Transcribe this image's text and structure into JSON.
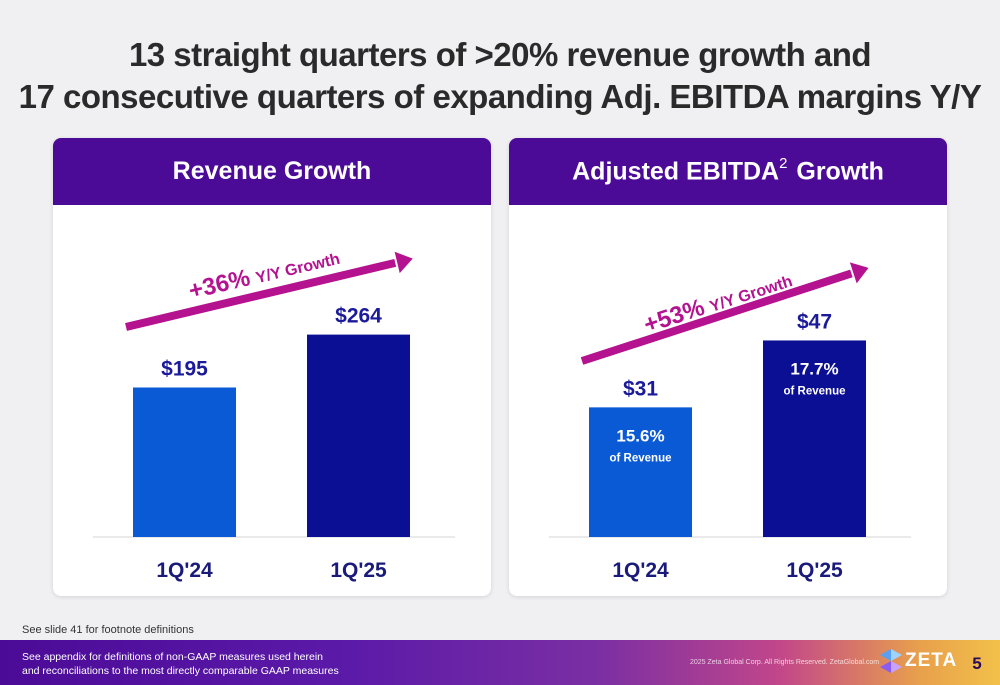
{
  "title_line1": "13 straight quarters of >20% revenue growth and",
  "title_line2": "17 consecutive quarters of expanding Adj. EBITDA margins Y/Y",
  "colors": {
    "header": "#4b0b97",
    "bar_prior": "#0a5ad6",
    "bar_current": "#0b0f94",
    "growth_arrow": "#b5128f",
    "value_label": "#1a1a9a"
  },
  "chart_data": [
    {
      "type": "bar",
      "title": "Revenue Growth",
      "categories": [
        "1Q'24",
        "1Q'25"
      ],
      "values": [
        195,
        264
      ],
      "value_labels": [
        "$195",
        "$264"
      ],
      "growth_pct": "+36%",
      "growth_text": "Y/Y Growth",
      "ylim": [
        0,
        300
      ]
    },
    {
      "type": "bar",
      "title_main": "Adjusted EBITDA",
      "title_sup": "2",
      "title_end": "Growth",
      "categories": [
        "1Q'24",
        "1Q'25"
      ],
      "values": [
        31,
        47
      ],
      "value_labels": [
        "$31",
        "$47"
      ],
      "margin_pct": [
        "15.6%",
        "17.7%"
      ],
      "margin_text": [
        "of Revenue",
        "of Revenue"
      ],
      "growth_pct": "+53%",
      "growth_text": "Y/Y Growth",
      "ylim": [
        0,
        55
      ]
    }
  ],
  "footnote": "See slide 41 for footnote definitions",
  "bottom_text": "See appendix for definitions of non-GAAP measures used herein and reconciliations to the most directly comparable GAAP measures",
  "copyright": "2025 Zeta Global Corp. All Rights Reserved. ZetaGlobal.com",
  "logo_text": "ZETA",
  "page_number": "5"
}
